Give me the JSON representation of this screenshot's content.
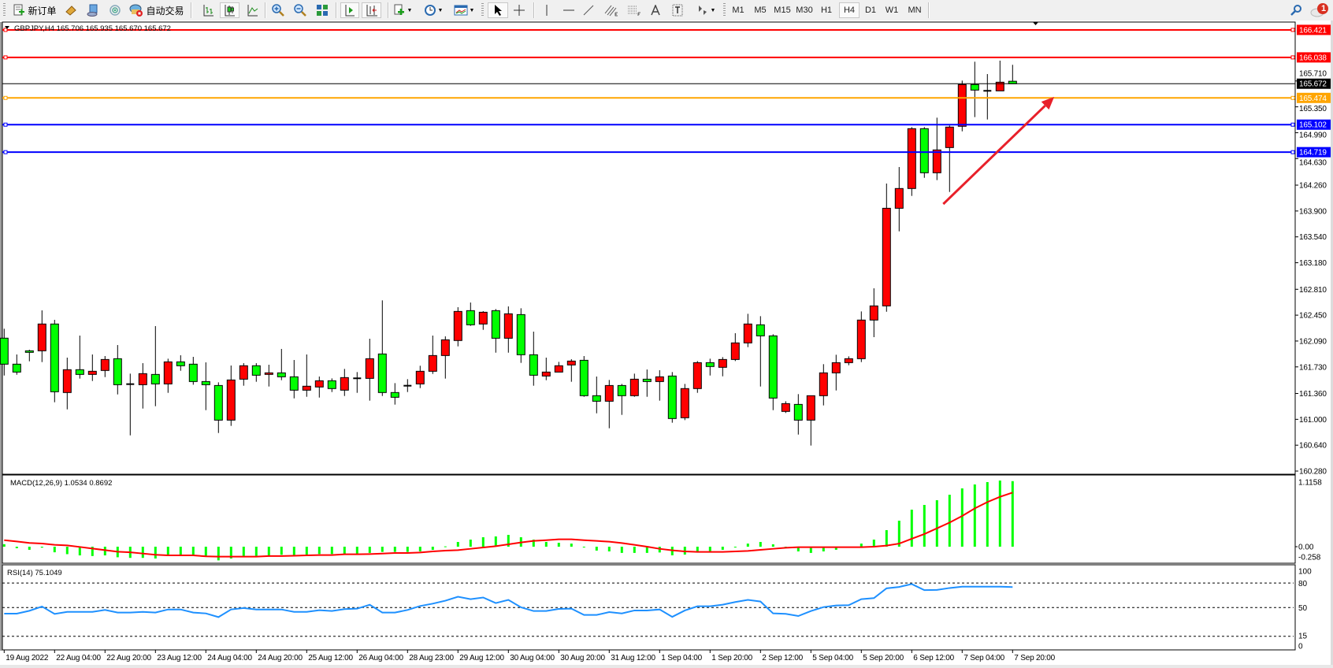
{
  "toolbar": {
    "new_order_label": "新订单",
    "auto_trading_label": "自动交易",
    "timeframes": [
      "M1",
      "M5",
      "M15",
      "M30",
      "H1",
      "H4",
      "D1",
      "W1",
      "MN"
    ],
    "active_timeframe": "H4",
    "notification_count": "1",
    "icons": [
      "new-order-icon",
      "market-watch-icon",
      "navigator-icon",
      "signals-icon",
      "auto-trading-icon",
      "bar-chart-icon",
      "candlestick-icon",
      "line-chart-icon",
      "zoom-in-icon",
      "zoom-out-icon",
      "tile-windows-icon",
      "chart-shift-icon",
      "auto-scroll-icon",
      "indicators-icon",
      "periods-icon",
      "templates-icon",
      "cursor-icon",
      "crosshair-icon",
      "vertical-line-icon",
      "horizontal-line-icon",
      "trendline-icon",
      "equidistant-channel-icon",
      "fibonacci-icon",
      "text-icon",
      "text-label-icon",
      "arrows-icon",
      "search-icon",
      "notification-icon"
    ]
  },
  "chart_header": "GBPJPY,H4  165.706 165.935 165.670 165.672",
  "colors": {
    "bull": "#ff0000",
    "bear": "#00ff00",
    "macd_hist": "#00ff00",
    "macd_signal": "#ff0000",
    "rsi": "#1e90ff",
    "arrow": "#e8202a"
  },
  "chart_data": [
    {
      "type": "candlestick",
      "symbol": "GBPJPY",
      "timeframe": "H4",
      "ohlc_header": {
        "open": "165.706",
        "high": "165.935",
        "low": "165.670",
        "close": "165.672"
      },
      "x_tick_labels": [
        "19 Aug 2022",
        "22 Aug 04:00",
        "22 Aug 20:00",
        "23 Aug 12:00",
        "24 Aug 04:00",
        "24 Aug 20:00",
        "25 Aug 12:00",
        "26 Aug 04:00",
        "28 Aug 23:00",
        "29 Aug 12:00",
        "30 Aug 04:00",
        "30 Aug 20:00",
        "31 Aug 12:00",
        "1 Sep 04:00",
        "1 Sep 20:00",
        "2 Sep 12:00",
        "5 Sep 04:00",
        "5 Sep 20:00",
        "6 Sep 12:00",
        "7 Sep 04:00",
        "7 Sep 20:00"
      ],
      "y_tick_labels": [
        "165.710",
        "165.350",
        "164.990",
        "164.630",
        "164.260",
        "163.900",
        "163.540",
        "163.180",
        "162.810",
        "162.450",
        "162.090",
        "161.730",
        "161.360",
        "161.000",
        "160.640",
        "160.280"
      ],
      "ylim": [
        160.28,
        166.5
      ],
      "candles_ohlc": [
        [
          162.13,
          162.261,
          161.61,
          161.768
        ],
        [
          161.768,
          161.903,
          161.621,
          161.658
        ],
        [
          161.954,
          161.969,
          161.808,
          161.932
        ],
        [
          161.954,
          162.517,
          161.797,
          162.327
        ],
        [
          162.327,
          162.385,
          161.238,
          161.384
        ],
        [
          161.373,
          161.859,
          161.139,
          161.691
        ],
        [
          161.691,
          162.166,
          161.567,
          161.625
        ],
        [
          161.625,
          161.903,
          161.534,
          161.669
        ],
        [
          161.68,
          161.881,
          161.588,
          161.833
        ],
        [
          161.844,
          162.034,
          161.347,
          161.482
        ],
        [
          161.49,
          161.636,
          160.777,
          161.488
        ],
        [
          161.482,
          161.782,
          161.15,
          161.636
        ],
        [
          161.625,
          162.298,
          161.183,
          161.493
        ],
        [
          161.493,
          161.844,
          161.369,
          161.8
        ],
        [
          161.8,
          161.892,
          161.676,
          161.746
        ],
        [
          161.768,
          161.87,
          161.482,
          161.526
        ],
        [
          161.526,
          161.793,
          161.128,
          161.482
        ],
        [
          161.471,
          161.515,
          160.81,
          160.989
        ],
        [
          160.989,
          161.749,
          160.909,
          161.548
        ],
        [
          161.559,
          161.782,
          161.468,
          161.746
        ],
        [
          161.746,
          161.782,
          161.523,
          161.614
        ],
        [
          161.625,
          161.76,
          161.457,
          161.647
        ],
        [
          161.647,
          161.98,
          161.545,
          161.592
        ],
        [
          161.592,
          161.826,
          161.292,
          161.406
        ],
        [
          161.406,
          161.903,
          161.314,
          161.461
        ],
        [
          161.45,
          161.596,
          161.303,
          161.537
        ],
        [
          161.537,
          161.57,
          161.38,
          161.428
        ],
        [
          161.406,
          161.702,
          161.325,
          161.581
        ],
        [
          161.57,
          161.658,
          161.369,
          161.571
        ],
        [
          161.57,
          162.122,
          161.26,
          161.844
        ],
        [
          161.91,
          162.656,
          161.325,
          161.373
        ],
        [
          161.373,
          161.504,
          161.205,
          161.307
        ],
        [
          161.465,
          161.559,
          161.38,
          161.468
        ],
        [
          161.493,
          161.746,
          161.435,
          161.669
        ],
        [
          161.669,
          162.166,
          161.632,
          161.888
        ],
        [
          161.888,
          162.155,
          161.567,
          162.107
        ],
        [
          162.097,
          162.561,
          162.016,
          162.502
        ],
        [
          162.513,
          162.626,
          162.301,
          162.316
        ],
        [
          162.327,
          162.506,
          162.246,
          162.491
        ],
        [
          162.513,
          162.535,
          161.928,
          162.129
        ],
        [
          162.129,
          162.572,
          161.928,
          162.469
        ],
        [
          162.458,
          162.546,
          161.786,
          161.899
        ],
        [
          161.899,
          162.221,
          161.468,
          161.614
        ],
        [
          161.603,
          161.859,
          161.545,
          161.658
        ],
        [
          161.658,
          161.8,
          161.658,
          161.746
        ],
        [
          161.757,
          161.837,
          161.523,
          161.811
        ],
        [
          161.822,
          161.881,
          161.314,
          161.329
        ],
        [
          161.329,
          161.596,
          161.084,
          161.252
        ],
        [
          161.252,
          161.548,
          160.876,
          161.471
        ],
        [
          161.471,
          161.493,
          161.062,
          161.329
        ],
        [
          161.329,
          161.636,
          161.314,
          161.559
        ],
        [
          161.559,
          161.694,
          161.314,
          161.526
        ],
        [
          161.526,
          161.684,
          161.26,
          161.592
        ],
        [
          161.603,
          161.658,
          160.953,
          161.011
        ],
        [
          161.022,
          161.493,
          160.989,
          161.428
        ],
        [
          161.428,
          161.811,
          161.369,
          161.789
        ],
        [
          161.789,
          161.844,
          161.61,
          161.735
        ],
        [
          161.724,
          161.866,
          161.599,
          161.833
        ],
        [
          161.833,
          162.199,
          161.811,
          162.064
        ],
        [
          162.064,
          162.469,
          162.005,
          162.327
        ],
        [
          162.316,
          162.436,
          161.457,
          162.162
        ],
        [
          162.162,
          162.184,
          161.128,
          161.296
        ],
        [
          161.11,
          161.252,
          161.088,
          161.219
        ],
        [
          161.208,
          161.351,
          160.788,
          160.989
        ],
        [
          160.989,
          161.329,
          160.635,
          161.329
        ],
        [
          161.329,
          161.768,
          161.194,
          161.647
        ],
        [
          161.647,
          161.899,
          161.402,
          161.789
        ],
        [
          161.789,
          161.877,
          161.753,
          161.844
        ],
        [
          161.844,
          162.502,
          161.797,
          162.382
        ],
        [
          162.382,
          162.824,
          162.144,
          162.579
        ],
        [
          162.579,
          164.282,
          162.498,
          163.938
        ],
        [
          163.938,
          164.512,
          163.617,
          164.213
        ],
        [
          164.213,
          165.068,
          164.11,
          165.046
        ],
        [
          165.046,
          165.068,
          164.362,
          164.432
        ],
        [
          164.432,
          165.199,
          164.33,
          164.75
        ],
        [
          164.783,
          165.09,
          164.165,
          165.068
        ],
        [
          165.079,
          165.715,
          165.009,
          165.66
        ],
        [
          165.66,
          165.978,
          165.207,
          165.583
        ],
        [
          165.572,
          165.806,
          165.174,
          165.573
        ],
        [
          165.572,
          165.993,
          165.572,
          165.693
        ],
        [
          165.706,
          165.935,
          165.67,
          165.672
        ]
      ],
      "horizontal_lines": [
        {
          "price": "166.421",
          "color": "#ff0000"
        },
        {
          "price": "166.038",
          "color": "#ff0000"
        },
        {
          "price": "165.474",
          "color": "#ffa500"
        },
        {
          "price": "165.102",
          "color": "#0000ff"
        },
        {
          "price": "164.719",
          "color": "#0000ff"
        }
      ],
      "bid_line": {
        "price": "165.672",
        "color": "#000000"
      },
      "arrow_annotation": {
        "from": {
          "candle": 74.5,
          "price": 163.997
        },
        "to": {
          "candle": 83.3,
          "price": 165.488
        }
      }
    },
    {
      "type": "bar+line",
      "indicator_label": "MACD(12,26,9) 1.0534 0.8692",
      "y_tick_labels": [
        "1.1158",
        "0.00",
        "-0.258"
      ],
      "ylim": [
        -0.258,
        1.1158
      ],
      "histogram": [
        0.04,
        -0.025,
        -0.05,
        -0.015,
        -0.09,
        -0.12,
        -0.14,
        -0.15,
        -0.14,
        -0.17,
        -0.18,
        -0.18,
        -0.19,
        -0.15,
        -0.15,
        -0.15,
        -0.15,
        -0.22,
        -0.19,
        -0.15,
        -0.15,
        -0.15,
        -0.13,
        -0.14,
        -0.14,
        -0.118,
        -0.118,
        -0.118,
        -0.118,
        -0.1,
        -0.084,
        -0.084,
        -0.084,
        -0.076,
        -0.051,
        0.005,
        0.076,
        0.114,
        0.152,
        0.165,
        0.19,
        0.152,
        0.114,
        0.076,
        0.063,
        0.05,
        -0.01,
        -0.063,
        -0.076,
        -0.1,
        -0.1,
        -0.1,
        -0.093,
        -0.139,
        -0.127,
        -0.076,
        -0.076,
        -0.05,
        -0.013,
        0.05,
        0.076,
        0.038,
        0.0,
        -0.076,
        -0.1,
        -0.076,
        -0.05,
        0.0,
        0.05,
        0.114,
        0.266,
        0.418,
        0.595,
        0.671,
        0.747,
        0.835,
        0.937,
        1.0,
        1.038,
        1.063,
        1.0534
      ],
      "signal": [
        0.105,
        0.084,
        0.06,
        0.05,
        0.03,
        0.02,
        -0.004,
        -0.03,
        -0.055,
        -0.08,
        -0.09,
        -0.11,
        -0.13,
        -0.14,
        -0.14,
        -0.14,
        -0.155,
        -0.16,
        -0.16,
        -0.16,
        -0.16,
        -0.15,
        -0.15,
        -0.145,
        -0.14,
        -0.135,
        -0.135,
        -0.122,
        -0.122,
        -0.118,
        -0.11,
        -0.101,
        -0.101,
        -0.093,
        -0.076,
        -0.063,
        -0.055,
        -0.034,
        -0.013,
        0.008,
        0.038,
        0.068,
        0.093,
        0.105,
        0.118,
        0.118,
        0.105,
        0.093,
        0.08,
        0.059,
        0.03,
        0.0,
        -0.034,
        -0.059,
        -0.076,
        -0.084,
        -0.084,
        -0.084,
        -0.076,
        -0.068,
        -0.05,
        -0.034,
        -0.017,
        -0.008,
        -0.008,
        -0.008,
        -0.008,
        -0.008,
        -0.008,
        0.0,
        0.017,
        0.05,
        0.127,
        0.203,
        0.295,
        0.388,
        0.494,
        0.616,
        0.717,
        0.802,
        0.8692
      ]
    },
    {
      "type": "line",
      "indicator_label": "RSI(14) 75.1049",
      "y_tick_labels": [
        "100",
        "80",
        "50",
        "15",
        "0"
      ],
      "levels": [
        80,
        50,
        15
      ],
      "ylim": [
        0,
        100
      ],
      "values": [
        42.6,
        42.6,
        46.1,
        51.3,
        42.3,
        44.8,
        44.8,
        44.8,
        47.1,
        43.9,
        43.9,
        44.8,
        43.9,
        47.7,
        47.7,
        43.9,
        42.9,
        38.4,
        47.7,
        49.4,
        47.7,
        47.7,
        47.7,
        44.8,
        44.8,
        46.8,
        45.8,
        48.1,
        48.7,
        53.5,
        43.9,
        43.9,
        47.1,
        51.9,
        54.8,
        58.4,
        63.2,
        60.3,
        62.3,
        55.5,
        59.4,
        50.3,
        45.8,
        45.8,
        48.4,
        48.7,
        41.0,
        41.0,
        44.5,
        42.9,
        46.5,
        46.5,
        47.7,
        38.7,
        46.5,
        51.6,
        51.6,
        53.5,
        56.8,
        59.4,
        57.4,
        42.9,
        42.3,
        39.7,
        45.8,
        50.6,
        52.6,
        52.9,
        60.3,
        61.6,
        73.5,
        75.2,
        78.7,
        71.3,
        71.6,
        73.9,
        75.5,
        75.5,
        75.5,
        75.5,
        75.1049
      ]
    }
  ]
}
